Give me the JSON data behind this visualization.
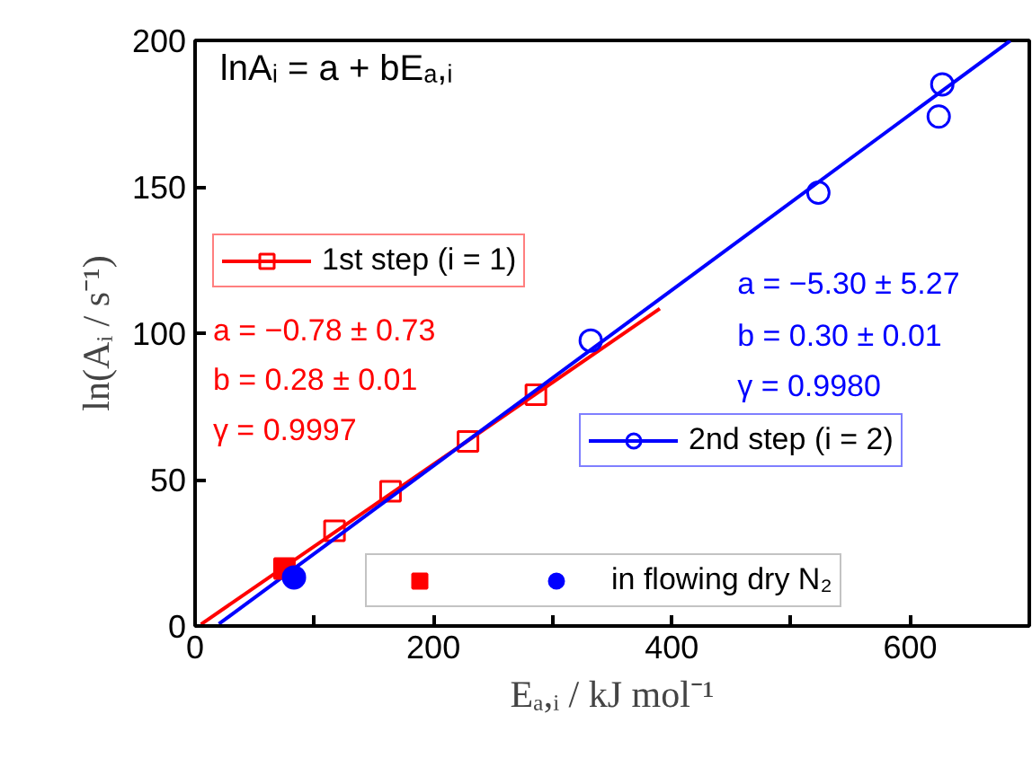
{
  "chart_data": {
    "type": "scatter",
    "xlabel": "Eₐ,ᵢ / kJ mol⁻¹",
    "ylabel": "ln(Aᵢ / s⁻¹)",
    "xlim": [
      0,
      700
    ],
    "ylim": [
      0,
      200
    ],
    "xticks": [
      0,
      {
        "value": 100,
        "label": null
      },
      200,
      {
        "value": 300,
        "label": null
      },
      400,
      {
        "value": 500,
        "label": null
      },
      600
    ],
    "yticks": [
      0,
      50,
      100,
      150,
      200
    ],
    "grid": false,
    "legend": "bottom left",
    "annotations": [
      "lnAᵢ = a + bEₐ,ᵢ",
      "a = −0.78 ± 0.73",
      "b = 0.28 ± 0.01",
      "γ = 0.9997",
      "a = −5.30 ± 5.27",
      "b = 0.30 ± 0.01",
      "γ = 0.9980"
    ],
    "series": [
      {
        "name": "1st step (i = 1)",
        "color": "#ff0000",
        "marker": "square",
        "x": [
          117,
          164,
          229,
          286
        ],
        "values": [
          32.5,
          46,
          63,
          79
        ]
      },
      {
        "color": "#ff0000",
        "type": "line",
        "x": [
          5,
          390
        ],
        "values": [
          0.6,
          108.4
        ]
      },
      {
        "name": "2nd step (i = 2)",
        "color": "#0000ff",
        "marker": "circle",
        "x": [
          332,
          523,
          624,
          627
        ],
        "values": [
          97.5,
          148,
          174,
          185
        ]
      },
      {
        "color": "#0000ff",
        "type": "line",
        "x": [
          20,
          684
        ],
        "values": [
          0.7,
          199.9
        ]
      },
      {
        "color": "#ff0000",
        "marker": "square",
        "x": [
          75
        ],
        "values": [
          19.6
        ]
      },
      {
        "name": "in flowing dry N₂",
        "color": "#0000ff",
        "marker": "circle",
        "x": [
          83
        ],
        "values": [
          16.6
        ]
      }
    ]
  }
}
